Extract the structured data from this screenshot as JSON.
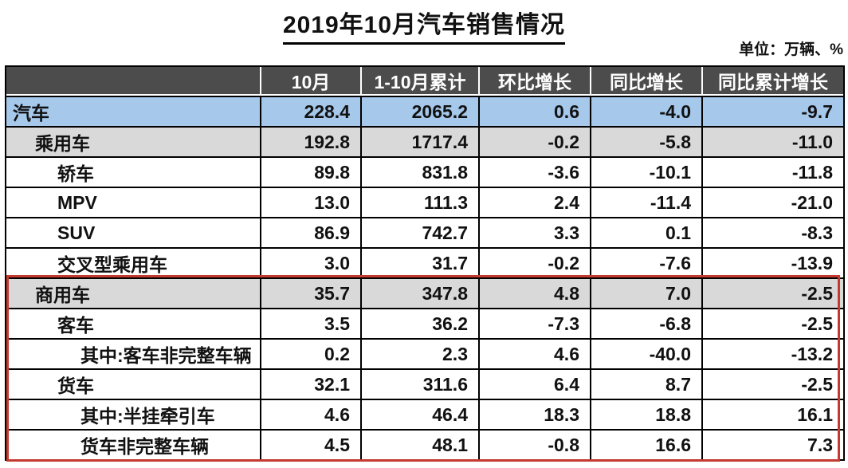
{
  "title": "2019年10月汽车销售情况",
  "unit_note": "单位：万辆、%",
  "colors": {
    "header_bg": "#4c4c4c",
    "header_text": "#ffffff",
    "row_blue": "#a5c8eb",
    "row_gray": "#d9d9d9",
    "grid": "#000000",
    "highlight_border": "#c43a30"
  },
  "columns": [
    "",
    "10月",
    "1-10月累计",
    "环比增长",
    "同比增长",
    "同比累计增长"
  ],
  "rows": [
    {
      "label": "汽车",
      "indent": 0,
      "bg": "blue",
      "values": [
        "228.4",
        "2065.2",
        "0.6",
        "-4.0",
        "-9.7"
      ]
    },
    {
      "label": "乘用车",
      "indent": 1,
      "bg": "gray",
      "values": [
        "192.8",
        "1717.4",
        "-0.2",
        "-5.8",
        "-11.0"
      ]
    },
    {
      "label": "轿车",
      "indent": 2,
      "bg": "white",
      "values": [
        "89.8",
        "831.8",
        "-3.6",
        "-10.1",
        "-11.8"
      ]
    },
    {
      "label": "MPV",
      "indent": 2,
      "bg": "white",
      "values": [
        "13.0",
        "111.3",
        "2.4",
        "-11.4",
        "-21.0"
      ]
    },
    {
      "label": "SUV",
      "indent": 2,
      "bg": "white",
      "values": [
        "86.9",
        "742.7",
        "3.3",
        "0.1",
        "-8.3"
      ]
    },
    {
      "label": "交叉型乘用车",
      "indent": 2,
      "bg": "white",
      "values": [
        "3.0",
        "31.7",
        "-0.2",
        "-7.6",
        "-13.9"
      ]
    },
    {
      "label": "商用车",
      "indent": 1,
      "bg": "gray",
      "values": [
        "35.7",
        "347.8",
        "4.8",
        "7.0",
        "-2.5"
      ]
    },
    {
      "label": "客车",
      "indent": 2,
      "bg": "white",
      "values": [
        "3.5",
        "36.2",
        "-7.3",
        "-6.8",
        "-2.5"
      ]
    },
    {
      "label": "其中:客车非完整车辆",
      "indent": 3,
      "bg": "white",
      "values": [
        "0.2",
        "2.3",
        "4.6",
        "-40.0",
        "-13.2"
      ]
    },
    {
      "label": "货车",
      "indent": 2,
      "bg": "white",
      "values": [
        "32.1",
        "311.6",
        "6.4",
        "8.7",
        "-2.5"
      ]
    },
    {
      "label": "其中:半挂牵引车",
      "indent": 3,
      "bg": "white",
      "values": [
        "4.6",
        "46.4",
        "18.3",
        "18.8",
        "16.1"
      ]
    },
    {
      "label": "货车非完整车辆",
      "indent": 3,
      "bg": "white",
      "values": [
        "4.5",
        "48.1",
        "-0.8",
        "16.6",
        "7.3"
      ]
    }
  ],
  "highlight": {
    "description": "red rectangle around commercial vehicle section",
    "first_row": "商用车",
    "last_row": "货车非完整车辆"
  },
  "chart_data": {
    "type": "table",
    "title": "2019年10月汽车销售情况",
    "unit": "万辆、%",
    "columns": [
      "10月",
      "1-10月累计",
      "环比增长",
      "同比增长",
      "同比累计增长"
    ],
    "rows": [
      {
        "category": "汽车",
        "level": 0,
        "october": 228.4,
        "jan_oct_cumulative": 2065.2,
        "mom_growth": 0.6,
        "yoy_growth": -4.0,
        "yoy_cumulative_growth": -9.7
      },
      {
        "category": "乘用车",
        "level": 1,
        "october": 192.8,
        "jan_oct_cumulative": 1717.4,
        "mom_growth": -0.2,
        "yoy_growth": -5.8,
        "yoy_cumulative_growth": -11.0
      },
      {
        "category": "轿车",
        "level": 2,
        "october": 89.8,
        "jan_oct_cumulative": 831.8,
        "mom_growth": -3.6,
        "yoy_growth": -10.1,
        "yoy_cumulative_growth": -11.8
      },
      {
        "category": "MPV",
        "level": 2,
        "october": 13.0,
        "jan_oct_cumulative": 111.3,
        "mom_growth": 2.4,
        "yoy_growth": -11.4,
        "yoy_cumulative_growth": -21.0
      },
      {
        "category": "SUV",
        "level": 2,
        "october": 86.9,
        "jan_oct_cumulative": 742.7,
        "mom_growth": 3.3,
        "yoy_growth": 0.1,
        "yoy_cumulative_growth": -8.3
      },
      {
        "category": "交叉型乘用车",
        "level": 2,
        "october": 3.0,
        "jan_oct_cumulative": 31.7,
        "mom_growth": -0.2,
        "yoy_growth": -7.6,
        "yoy_cumulative_growth": -13.9
      },
      {
        "category": "商用车",
        "level": 1,
        "october": 35.7,
        "jan_oct_cumulative": 347.8,
        "mom_growth": 4.8,
        "yoy_growth": 7.0,
        "yoy_cumulative_growth": -2.5
      },
      {
        "category": "客车",
        "level": 2,
        "october": 3.5,
        "jan_oct_cumulative": 36.2,
        "mom_growth": -7.3,
        "yoy_growth": -6.8,
        "yoy_cumulative_growth": -2.5
      },
      {
        "category": "其中:客车非完整车辆",
        "level": 3,
        "october": 0.2,
        "jan_oct_cumulative": 2.3,
        "mom_growth": 4.6,
        "yoy_growth": -40.0,
        "yoy_cumulative_growth": -13.2
      },
      {
        "category": "货车",
        "level": 2,
        "october": 32.1,
        "jan_oct_cumulative": 311.6,
        "mom_growth": 6.4,
        "yoy_growth": 8.7,
        "yoy_cumulative_growth": -2.5
      },
      {
        "category": "其中:半挂牵引车",
        "level": 3,
        "october": 4.6,
        "jan_oct_cumulative": 46.4,
        "mom_growth": 18.3,
        "yoy_growth": 18.8,
        "yoy_cumulative_growth": 16.1
      },
      {
        "category": "货车非完整车辆",
        "level": 3,
        "october": 4.5,
        "jan_oct_cumulative": 48.1,
        "mom_growth": -0.8,
        "yoy_growth": 16.6,
        "yoy_cumulative_growth": 7.3
      }
    ]
  }
}
